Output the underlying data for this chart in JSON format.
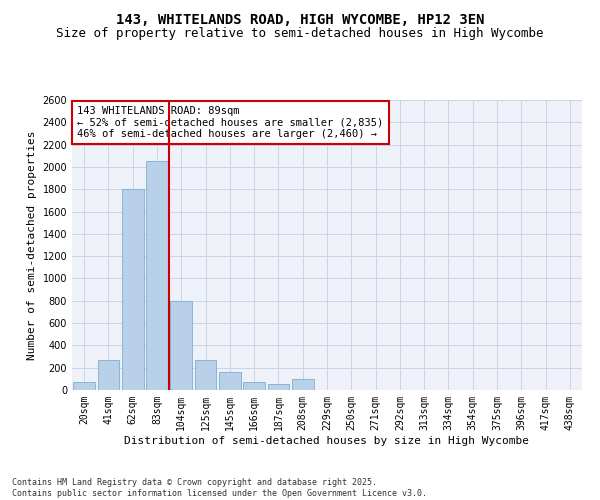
{
  "title1": "143, WHITELANDS ROAD, HIGH WYCOMBE, HP12 3EN",
  "title2": "Size of property relative to semi-detached houses in High Wycombe",
  "xlabel": "Distribution of semi-detached houses by size in High Wycombe",
  "ylabel": "Number of semi-detached properties",
  "categories": [
    "20sqm",
    "41sqm",
    "62sqm",
    "83sqm",
    "104sqm",
    "125sqm",
    "145sqm",
    "166sqm",
    "187sqm",
    "208sqm",
    "229sqm",
    "250sqm",
    "271sqm",
    "292sqm",
    "313sqm",
    "334sqm",
    "354sqm",
    "375sqm",
    "396sqm",
    "417sqm",
    "438sqm"
  ],
  "values": [
    75,
    270,
    1800,
    2050,
    800,
    270,
    160,
    75,
    50,
    100,
    0,
    0,
    0,
    0,
    0,
    0,
    0,
    0,
    0,
    0,
    0
  ],
  "bar_color": "#b8d0e8",
  "bar_edge_color": "#7aafd4",
  "vline_color": "#cc0000",
  "vline_x_index": 3.5,
  "annotation_line1": "143 WHITELANDS ROAD: 89sqm",
  "annotation_line2": "← 52% of semi-detached houses are smaller (2,835)",
  "annotation_line3": "46% of semi-detached houses are larger (2,460) →",
  "annotation_box_color": "#cc0000",
  "ylim": [
    0,
    2600
  ],
  "yticks": [
    0,
    200,
    400,
    600,
    800,
    1000,
    1200,
    1400,
    1600,
    1800,
    2000,
    2200,
    2400,
    2600
  ],
  "grid_color": "#c8d4e8",
  "bg_color": "#eef2f8",
  "footnote": "Contains HM Land Registry data © Crown copyright and database right 2025.\nContains public sector information licensed under the Open Government Licence v3.0.",
  "title_fontsize": 10,
  "subtitle_fontsize": 9,
  "axis_label_fontsize": 8,
  "tick_fontsize": 7,
  "annotation_fontsize": 7.5,
  "footnote_fontsize": 6
}
